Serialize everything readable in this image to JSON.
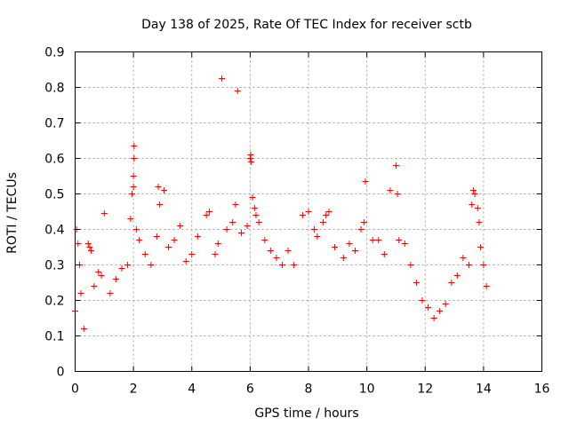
{
  "chart_data": {
    "type": "scatter",
    "title": "Day 138 of 2025, Rate Of TEC Index for receiver sctb",
    "xlabel": "GPS time / hours",
    "ylabel": "ROTI / TECUs",
    "xlim": [
      0,
      16
    ],
    "ylim": [
      0,
      0.9
    ],
    "xticks": [
      "0",
      "2",
      "4",
      "6",
      "8",
      "10",
      "12",
      "14",
      "16"
    ],
    "yticks": [
      "0",
      "0.1",
      "0.2",
      "0.3",
      "0.4",
      "0.5",
      "0.6",
      "0.7",
      "0.8",
      "0.9"
    ],
    "grid": true,
    "marker": "+",
    "color": "#ff0000",
    "series": [
      {
        "name": "ROTI",
        "points": [
          [
            0.0,
            0.17
          ],
          [
            0.05,
            0.4
          ],
          [
            0.1,
            0.36
          ],
          [
            0.15,
            0.3
          ],
          [
            0.2,
            0.22
          ],
          [
            0.3,
            0.12
          ],
          [
            0.45,
            0.36
          ],
          [
            0.5,
            0.35
          ],
          [
            0.55,
            0.34
          ],
          [
            0.65,
            0.24
          ],
          [
            0.8,
            0.28
          ],
          [
            0.9,
            0.27
          ],
          [
            1.0,
            0.445
          ],
          [
            1.2,
            0.22
          ],
          [
            1.4,
            0.26
          ],
          [
            1.6,
            0.29
          ],
          [
            1.8,
            0.3
          ],
          [
            1.9,
            0.43
          ],
          [
            1.95,
            0.5
          ],
          [
            2.0,
            0.55
          ],
          [
            2.0,
            0.52
          ],
          [
            2.02,
            0.6
          ],
          [
            2.02,
            0.635
          ],
          [
            2.1,
            0.4
          ],
          [
            2.2,
            0.37
          ],
          [
            2.4,
            0.33
          ],
          [
            2.6,
            0.3
          ],
          [
            2.8,
            0.38
          ],
          [
            2.85,
            0.52
          ],
          [
            2.9,
            0.47
          ],
          [
            3.05,
            0.51
          ],
          [
            3.2,
            0.35
          ],
          [
            3.4,
            0.37
          ],
          [
            3.6,
            0.41
          ],
          [
            3.8,
            0.31
          ],
          [
            4.0,
            0.33
          ],
          [
            4.2,
            0.38
          ],
          [
            4.5,
            0.44
          ],
          [
            4.6,
            0.45
          ],
          [
            4.8,
            0.33
          ],
          [
            4.9,
            0.36
          ],
          [
            5.03,
            0.825
          ],
          [
            5.2,
            0.4
          ],
          [
            5.4,
            0.42
          ],
          [
            5.5,
            0.47
          ],
          [
            5.57,
            0.79
          ],
          [
            5.7,
            0.39
          ],
          [
            5.9,
            0.41
          ],
          [
            6.0,
            0.6
          ],
          [
            6.02,
            0.61
          ],
          [
            6.04,
            0.59
          ],
          [
            6.08,
            0.49
          ],
          [
            6.15,
            0.46
          ],
          [
            6.2,
            0.44
          ],
          [
            6.3,
            0.42
          ],
          [
            6.5,
            0.37
          ],
          [
            6.7,
            0.34
          ],
          [
            6.9,
            0.32
          ],
          [
            7.1,
            0.3
          ],
          [
            7.3,
            0.34
          ],
          [
            7.5,
            0.3
          ],
          [
            7.8,
            0.44
          ],
          [
            8.0,
            0.45
          ],
          [
            8.2,
            0.4
          ],
          [
            8.3,
            0.38
          ],
          [
            8.5,
            0.42
          ],
          [
            8.6,
            0.44
          ],
          [
            8.7,
            0.45
          ],
          [
            8.9,
            0.35
          ],
          [
            9.2,
            0.32
          ],
          [
            9.4,
            0.36
          ],
          [
            9.6,
            0.34
          ],
          [
            9.8,
            0.4
          ],
          [
            9.9,
            0.42
          ],
          [
            9.95,
            0.535
          ],
          [
            10.2,
            0.37
          ],
          [
            10.4,
            0.37
          ],
          [
            10.6,
            0.33
          ],
          [
            10.8,
            0.51
          ],
          [
            11.0,
            0.58
          ],
          [
            11.05,
            0.5
          ],
          [
            11.1,
            0.37
          ],
          [
            11.3,
            0.36
          ],
          [
            11.5,
            0.3
          ],
          [
            11.7,
            0.25
          ],
          [
            11.9,
            0.2
          ],
          [
            12.1,
            0.18
          ],
          [
            12.3,
            0.15
          ],
          [
            12.5,
            0.17
          ],
          [
            12.7,
            0.19
          ],
          [
            12.9,
            0.25
          ],
          [
            13.1,
            0.27
          ],
          [
            13.3,
            0.32
          ],
          [
            13.5,
            0.3
          ],
          [
            13.6,
            0.47
          ],
          [
            13.65,
            0.51
          ],
          [
            13.7,
            0.5
          ],
          [
            13.8,
            0.46
          ],
          [
            13.85,
            0.42
          ],
          [
            13.9,
            0.35
          ],
          [
            14.0,
            0.3
          ],
          [
            14.1,
            0.24
          ]
        ]
      }
    ]
  }
}
